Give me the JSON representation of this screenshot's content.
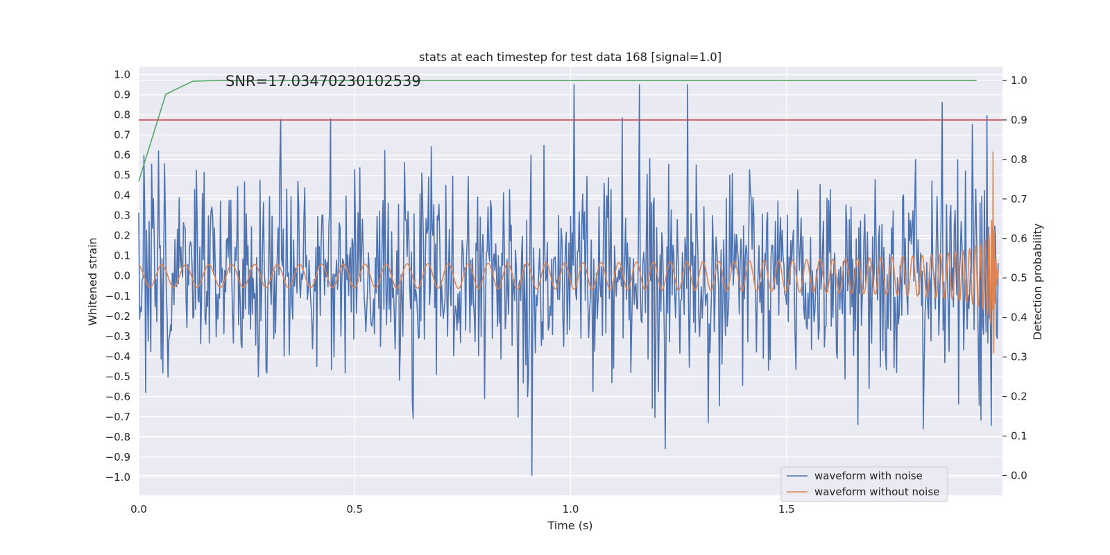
{
  "chart_data": {
    "type": "line",
    "title": "stats at each timestep for test data 168 [signal=1.0]",
    "annotation": "SNR=17.03470230102539",
    "xlabel": "Time (s)",
    "ylabel_left": "Whitened strain",
    "ylabel_right": "Detection probability",
    "xlim": [
      0.0,
      2.0
    ],
    "ylim_left": [
      -1.09,
      1.04
    ],
    "ylim_right": [
      -0.05,
      1.035
    ],
    "x_ticks": [
      "0.0",
      "0.5",
      "1.0",
      "1.5"
    ],
    "x_tick_values": [
      0.0,
      0.5,
      1.0,
      1.5
    ],
    "y_left_ticks": [
      "1.0",
      "0.9",
      "0.8",
      "0.7",
      "0.6",
      "0.5",
      "0.4",
      "0.3",
      "0.2",
      "0.1",
      "0.0",
      "−0.1",
      "−0.2",
      "−0.3",
      "−0.4",
      "−0.5",
      "−0.6",
      "−0.7",
      "−0.8",
      "−0.9",
      "−1.0"
    ],
    "y_left_tick_values": [
      1.0,
      0.9,
      0.8,
      0.7,
      0.6,
      0.5,
      0.4,
      0.3,
      0.2,
      0.1,
      0.0,
      -0.1,
      -0.2,
      -0.3,
      -0.4,
      -0.5,
      -0.6,
      -0.7,
      -0.8,
      -0.9,
      -1.0
    ],
    "y_right_ticks": [
      "1.0",
      "0.9",
      "0.8",
      "0.7",
      "0.6",
      "0.5",
      "0.4",
      "0.3",
      "0.2",
      "0.1",
      "0.0"
    ],
    "y_right_tick_values": [
      1.0,
      0.9,
      0.8,
      0.7,
      0.6,
      0.5,
      0.4,
      0.3,
      0.2,
      0.1,
      0.0
    ],
    "grid": true,
    "legend_position": "bottom-right",
    "series": [
      {
        "name": "waveform with noise",
        "color": "#4c72b0",
        "axis": "left",
        "kind": "noise",
        "samples": 1000,
        "x_end": 1.99,
        "amplitude_rms": 0.25,
        "peaks": [
          {
            "x": 0.445,
            "y": 0.81
          },
          {
            "x": 0.91,
            "y": -0.99
          },
          {
            "x": 1.16,
            "y": 0.94
          },
          {
            "x": 1.27,
            "y": 0.91
          },
          {
            "x": 1.12,
            "y": 0.77
          },
          {
            "x": 1.86,
            "y": 0.86
          },
          {
            "x": 1.93,
            "y": 0.83
          },
          {
            "x": 1.965,
            "y": 0.9
          },
          {
            "x": 1.95,
            "y": -0.81
          },
          {
            "x": 1.975,
            "y": -0.82
          },
          {
            "x": 0.635,
            "y": -0.7
          },
          {
            "x": 1.665,
            "y": -0.79
          }
        ]
      },
      {
        "name": "waveform without noise",
        "color": "#dd8452",
        "axis": "left",
        "kind": "chirp",
        "t_merger": 1.978,
        "f_start": 18,
        "amp_start": 0.055,
        "amp_peak": 0.63,
        "x_end": 1.99
      },
      {
        "name": "",
        "color": "#55a868",
        "axis": "right",
        "kind": "probability",
        "x": [
          0.0,
          0.0625,
          0.125,
          0.1875,
          0.25,
          0.5,
          1.0,
          1.5,
          1.94
        ],
        "y": [
          0.745,
          0.965,
          0.998,
          1.0,
          1.0,
          1.0,
          1.0,
          1.0,
          1.0
        ]
      },
      {
        "name": "",
        "color": "#c44e52",
        "axis": "right",
        "kind": "threshold",
        "x": [
          0.0,
          2.0
        ],
        "y": [
          0.9,
          0.9
        ]
      }
    ]
  }
}
